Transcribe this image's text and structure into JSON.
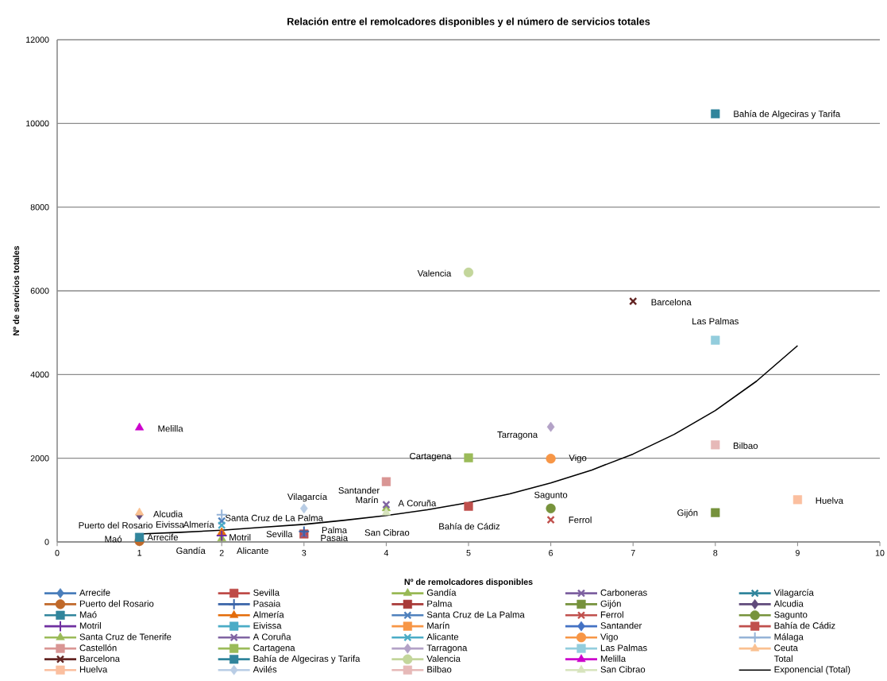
{
  "chart_data": {
    "type": "scatter",
    "title": "Relación entre el remolcadores disponibles y el número de servicios totales",
    "xlabel": "Nº de remolcadores disponibles",
    "ylabel": "Nº de servicios totales",
    "xlim": [
      0,
      10
    ],
    "xticks": [
      0,
      1,
      2,
      3,
      4,
      5,
      6,
      7,
      8,
      9,
      10
    ],
    "ylim": [
      0,
      12000
    ],
    "yticks": [
      0,
      2000,
      4000,
      6000,
      8000,
      10000,
      12000
    ],
    "grid": "y",
    "legend": "bottom",
    "annotations": [
      "Arrecife",
      "Eivissa",
      "Palma",
      "Marín",
      "Santander",
      "Vilagarcía"
    ],
    "series": [
      {
        "name": "Arrecife",
        "color": "#4a7ebb",
        "marker": "diamond"
      },
      {
        "name": "Sevilla",
        "color": "#be4b48",
        "marker": "square",
        "x": [
          3
        ],
        "values": [
          190
        ],
        "value_labels": [
          "Sevilla"
        ]
      },
      {
        "name": "Gandía",
        "color": "#98b954",
        "marker": "triangle",
        "x": [
          2
        ],
        "values": [
          80
        ],
        "value_labels": [
          "Gandía"
        ]
      },
      {
        "name": "Carboneras",
        "color": "#7d60a0",
        "marker": "cross",
        "x": [
          3
        ],
        "values": [
          190
        ]
      },
      {
        "name": "Vilagarcía",
        "color": "#31859c",
        "marker": "cross"
      },
      {
        "name": "Puerto del Rosario",
        "color": "#c0692a",
        "marker": "circle",
        "x": [
          1
        ],
        "values": [
          20
        ],
        "value_labels": [
          "Puerto del Rosario"
        ]
      },
      {
        "name": "Pasaia",
        "color": "#3a64a8",
        "marker": "plus",
        "x": [
          3
        ],
        "values": [
          250
        ],
        "value_labels": [
          "Pasaia"
        ]
      },
      {
        "name": "Palma",
        "color": "#a83a38",
        "marker": "square"
      },
      {
        "name": "Gijón",
        "color": "#76923c",
        "marker": "square",
        "x": [
          8
        ],
        "values": [
          700
        ],
        "value_labels": [
          "Gijón"
        ]
      },
      {
        "name": "Alcudia",
        "color": "#604a7b",
        "marker": "diamond",
        "x": [
          1
        ],
        "values": [
          650
        ],
        "value_labels": [
          "Alcudia"
        ]
      },
      {
        "name": "Maó",
        "color": "#31859c",
        "marker": "square",
        "x": [
          1
        ],
        "values": [
          110
        ],
        "value_labels": [
          "Maó"
        ]
      },
      {
        "name": "Almería",
        "color": "#e46c0a",
        "marker": "triangle",
        "x": [
          2
        ],
        "values": [
          230
        ],
        "value_labels": [
          "Almería"
        ]
      },
      {
        "name": "Santa Cruz de La Palma",
        "color": "#4f81bd",
        "marker": "cross",
        "x": [
          2
        ],
        "values": [
          500
        ],
        "value_labels": [
          "Santa Cruz de La Palma"
        ]
      },
      {
        "name": "Ferrol",
        "color": "#c0504d",
        "marker": "cross",
        "x": [
          6
        ],
        "values": [
          530
        ],
        "value_labels": [
          "Ferrol"
        ]
      },
      {
        "name": "Sagunto",
        "color": "#77933c",
        "marker": "circle",
        "x": [
          6
        ],
        "values": [
          800
        ],
        "value_labels": [
          "Sagunto"
        ]
      },
      {
        "name": "Motril",
        "color": "#7030a0",
        "marker": "plus",
        "x": [
          2
        ],
        "values": [
          150
        ],
        "value_labels": [
          "Motril"
        ]
      },
      {
        "name": "Eivissa",
        "color": "#4bacc6",
        "marker": "square"
      },
      {
        "name": "Marín",
        "color": "#f79646",
        "marker": "square"
      },
      {
        "name": "Santander",
        "color": "#4472c4",
        "marker": "diamond"
      },
      {
        "name": "Bahía de Cádiz",
        "color": "#c0504d",
        "marker": "square",
        "x": [
          5
        ],
        "values": [
          850
        ],
        "value_labels": [
          "Bahía de Cádiz"
        ]
      },
      {
        "name": "Santa Cruz de Tenerife",
        "color": "#9bbb59",
        "marker": "triangle",
        "x": [
          4
        ],
        "values": [
          800
        ]
      },
      {
        "name": "A Coruña",
        "color": "#8064a2",
        "marker": "cross",
        "x": [
          4
        ],
        "values": [
          890
        ],
        "value_labels": [
          "A Coruña"
        ]
      },
      {
        "name": "Alicante",
        "color": "#4bacc6",
        "marker": "cross",
        "x": [
          2
        ],
        "values": [
          400
        ],
        "value_labels": [
          "Alicante"
        ]
      },
      {
        "name": "Vigo",
        "color": "#f79646",
        "marker": "circle",
        "x": [
          6
        ],
        "values": [
          1990
        ],
        "value_labels": [
          "Vigo"
        ]
      },
      {
        "name": "Málaga",
        "color": "#95b3d7",
        "marker": "plus",
        "x": [
          2
        ],
        "values": [
          650
        ]
      },
      {
        "name": "Castellón",
        "color": "#d99694",
        "marker": "square",
        "x": [
          4
        ],
        "values": [
          1440
        ]
      },
      {
        "name": "Cartagena",
        "color": "#9bbb59",
        "marker": "square",
        "x": [
          5
        ],
        "values": [
          2010
        ],
        "value_labels": [
          "Cartagena"
        ]
      },
      {
        "name": "Tarragona",
        "color": "#b3a2c7",
        "marker": "diamond",
        "x": [
          6
        ],
        "values": [
          2750
        ],
        "value_labels": [
          "Tarragona"
        ]
      },
      {
        "name": "Las Palmas",
        "color": "#93cddd",
        "marker": "square",
        "x": [
          8
        ],
        "values": [
          4820
        ],
        "value_labels": [
          "Las Palmas"
        ]
      },
      {
        "name": "Ceuta",
        "color": "#fac090",
        "marker": "triangle",
        "x": [
          1
        ],
        "values": [
          700
        ]
      },
      {
        "name": "Barcelona",
        "color": "#632523",
        "marker": "cross",
        "x": [
          7
        ],
        "values": [
          5750
        ],
        "value_labels": [
          "Barcelona"
        ]
      },
      {
        "name": "Bahía de Algeciras y Tarifa",
        "color": "#31859c",
        "marker": "square",
        "x": [
          8
        ],
        "values": [
          10230
        ],
        "value_labels": [
          "Bahía de Algeciras y Tarifa"
        ]
      },
      {
        "name": "Valencia",
        "color": "#c3d69b",
        "marker": "circle",
        "x": [
          5
        ],
        "values": [
          6440
        ],
        "value_labels": [
          "Valencia"
        ]
      },
      {
        "name": "Melilla",
        "color": "#cc00cc",
        "marker": "triangle",
        "x": [
          1
        ],
        "values": [
          2730
        ],
        "value_labels": [
          "Melilla"
        ]
      },
      {
        "name": "Total",
        "marker": "none"
      },
      {
        "name": "Huelva",
        "color": "#fbbf9f",
        "marker": "square",
        "x": [
          9
        ],
        "values": [
          1010
        ],
        "value_labels": [
          "Huelva"
        ]
      },
      {
        "name": "Avilés",
        "color": "#b9cde5",
        "marker": "diamond",
        "x": [
          3
        ],
        "values": [
          800
        ]
      },
      {
        "name": "Bilbao",
        "color": "#e6b9b8",
        "marker": "square",
        "x": [
          8
        ],
        "values": [
          2320
        ],
        "value_labels": [
          "Bilbao"
        ]
      },
      {
        "name": "San Cibrao",
        "color": "#d7e4bd",
        "marker": "triangle",
        "x": [
          4
        ],
        "values": [
          700
        ],
        "value_labels": [
          "San Cibrao"
        ]
      },
      {
        "name": "Exponencial (Total)",
        "type": "line",
        "color": "#000000",
        "marker": "none",
        "x": [
          1,
          1.5,
          2,
          2.5,
          3,
          3.5,
          4,
          4.5,
          5,
          5.5,
          6,
          6.5,
          7,
          7.5,
          8,
          8.5,
          9
        ],
        "values": [
          190,
          230,
          280,
          350,
          420,
          520,
          630,
          770,
          940,
          1150,
          1410,
          1720,
          2100,
          2570,
          3140,
          3840,
          4690
        ]
      }
    ]
  }
}
